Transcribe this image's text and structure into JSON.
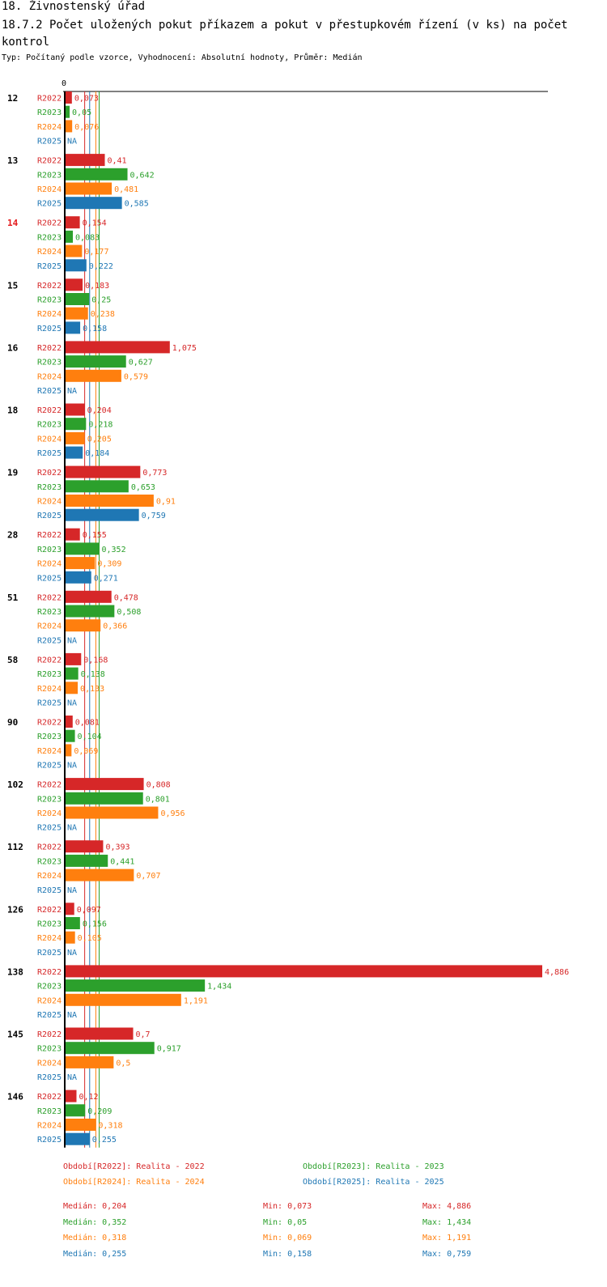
{
  "header": {
    "title": "18. Živnostenský úřad",
    "subtitle": "18.7.2 Počet uložených pokut příkazem a pokut v přestupkovém řízení (v ks) na počet kontrol",
    "description": "Typ: Počítaný podle vzorce, Vyhodnocení: Absolutní hodnoty, Průměr: Medián"
  },
  "chart_data": {
    "type": "bar",
    "orientation": "horizontal",
    "axis_zero_label": "0",
    "xlim": [
      0,
      4.886
    ],
    "highlight_category": "14",
    "highlight_color": "#e41a1c",
    "categories": [
      "12",
      "13",
      "14",
      "15",
      "16",
      "18",
      "19",
      "28",
      "51",
      "58",
      "90",
      "102",
      "112",
      "126",
      "138",
      "145",
      "146"
    ],
    "series": [
      {
        "name": "R2022",
        "color": "#d62728",
        "values": [
          0.073,
          0.41,
          0.154,
          0.183,
          1.075,
          0.204,
          0.773,
          0.155,
          0.478,
          0.168,
          0.081,
          0.808,
          0.393,
          0.097,
          4.886,
          0.7,
          0.12
        ],
        "labels": [
          "0,073",
          "0,41",
          "0,154",
          "0,183",
          "1,075",
          "0,204",
          "0,773",
          "0,155",
          "0,478",
          "0,168",
          "0,081",
          "0,808",
          "0,393",
          "0,097",
          "4,886",
          "0,7",
          "0,12"
        ]
      },
      {
        "name": "R2023",
        "color": "#2ca02c",
        "values": [
          0.05,
          0.642,
          0.083,
          0.25,
          0.627,
          0.218,
          0.653,
          0.352,
          0.508,
          0.138,
          0.104,
          0.801,
          0.441,
          0.156,
          1.434,
          0.917,
          0.209
        ],
        "labels": [
          "0,05",
          "0,642",
          "0,083",
          "0,25",
          "0,627",
          "0,218",
          "0,653",
          "0,352",
          "0,508",
          "0,138",
          "0,104",
          "0,801",
          "0,441",
          "0,156",
          "1,434",
          "0,917",
          "0,209"
        ]
      },
      {
        "name": "R2024",
        "color": "#ff7f0e",
        "values": [
          0.076,
          0.481,
          0.177,
          0.238,
          0.579,
          0.205,
          0.91,
          0.309,
          0.366,
          0.133,
          0.069,
          0.956,
          0.707,
          0.105,
          1.191,
          0.5,
          0.318
        ],
        "labels": [
          "0,076",
          "0,481",
          "0,177",
          "0,238",
          "0,579",
          "0,205",
          "0,91",
          "0,309",
          "0,366",
          "0,133",
          "0,069",
          "0,956",
          "0,707",
          "0,105",
          "1,191",
          "0,5",
          "0,318"
        ]
      },
      {
        "name": "R2025",
        "color": "#1f77b4",
        "values": [
          null,
          0.585,
          0.222,
          0.158,
          null,
          0.184,
          0.759,
          0.271,
          null,
          null,
          null,
          null,
          null,
          null,
          null,
          null,
          0.255
        ],
        "labels": [
          "NA",
          "0,585",
          "0,222",
          "0,158",
          "NA",
          "0,184",
          "0,759",
          "0,271",
          "NA",
          "NA",
          "NA",
          "NA",
          "NA",
          "NA",
          "NA",
          "NA",
          "0,255"
        ]
      }
    ],
    "medians": [
      0.204,
      0.352,
      0.318,
      0.255
    ],
    "legend": [
      "Období[R2022]: Realita - 2022",
      "Období[R2023]: Realita - 2023",
      "Období[R2024]: Realita - 2024",
      "Období[R2025]: Realita - 2025"
    ],
    "stats": [
      {
        "median": "Medián: 0,204",
        "min": "Min: 0,073",
        "max": "Max: 4,886"
      },
      {
        "median": "Medián: 0,352",
        "min": "Min: 0,05",
        "max": "Max: 1,434"
      },
      {
        "median": "Medián: 0,318",
        "min": "Min: 0,069",
        "max": "Max: 1,191"
      },
      {
        "median": "Medián: 0,255",
        "min": "Min: 0,158",
        "max": "Max: 0,759"
      }
    ]
  }
}
